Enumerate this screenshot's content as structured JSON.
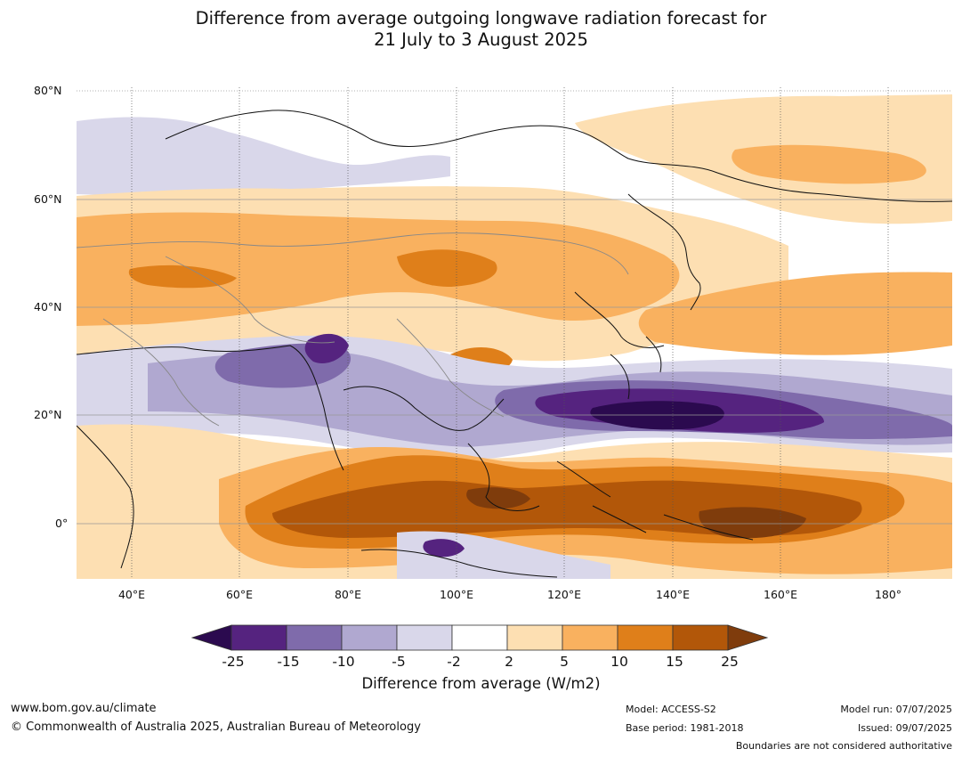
{
  "title_line1": "Difference from average outgoing longwave radiation forecast for",
  "title_line2": "21 July to 3 August 2025",
  "lat_labels": [
    "80°N",
    "60°N",
    "40°N",
    "20°N",
    "0°"
  ],
  "lon_labels": [
    "40°E",
    "60°E",
    "80°E",
    "100°E",
    "120°E",
    "140°E",
    "160°E",
    "180°"
  ],
  "colorbar": {
    "label": "Difference from average (W/m2)",
    "ticks": [
      "-25",
      "-15",
      "-10",
      "-5",
      "-2",
      "2",
      "5",
      "10",
      "15",
      "25"
    ],
    "colors": [
      "#2b0a4f",
      "#55237f",
      "#7f6bab",
      "#b0a8d0",
      "#d9d7ea",
      "#ffffff",
      "#fddfb2",
      "#f9b15f",
      "#df7f1a",
      "#b25709",
      "#7f3c0c"
    ]
  },
  "footer": {
    "url": "www.bom.gov.au/climate",
    "copyright": "© Commonwealth of Australia 2025, Australian Bureau of Meteorology",
    "model": "Model: ACCESS-S2",
    "base_period": "Base period: 1981-2018",
    "model_run": "Model run: 07/07/2025",
    "issued": "Issued: 09/07/2025",
    "disclaimer": "Boundaries are not considered authoritative"
  }
}
